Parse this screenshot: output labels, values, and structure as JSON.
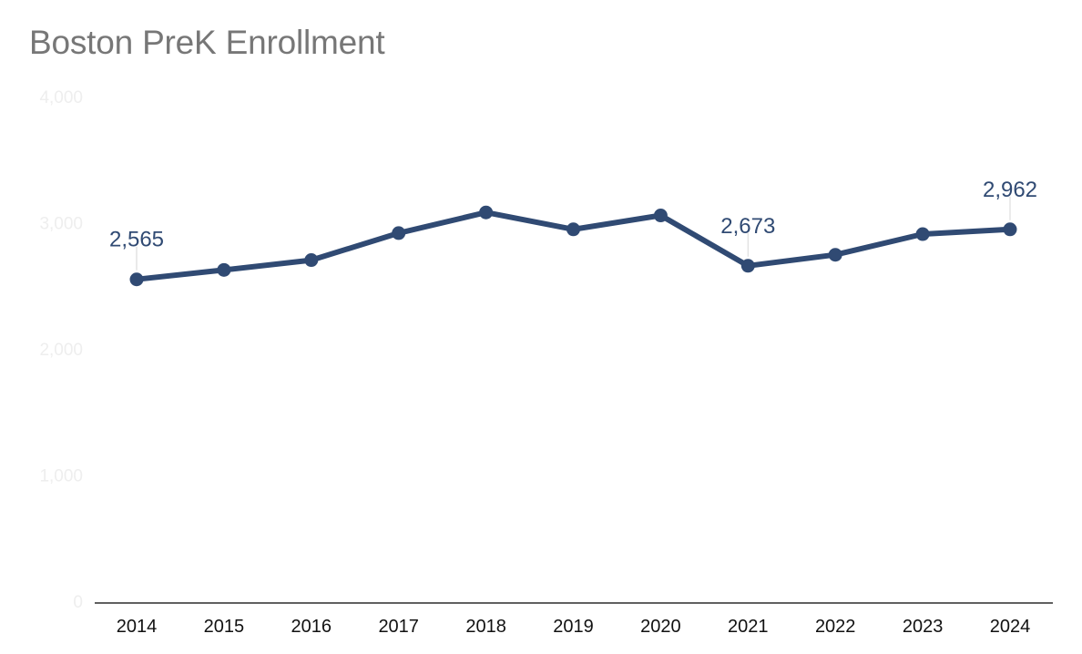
{
  "chart_data": {
    "type": "line",
    "title": "Boston PreK Enrollment",
    "xlabel": "",
    "ylabel": "",
    "categories": [
      "2014",
      "2015",
      "2016",
      "2017",
      "2018",
      "2019",
      "2020",
      "2021",
      "2022",
      "2023",
      "2024"
    ],
    "series": [
      {
        "values": [
          2565,
          2640,
          2718,
          2932,
          3096,
          2962,
          3072,
          2673,
          2760,
          2924,
          2962
        ]
      }
    ],
    "data_labels": [
      {
        "index": 0,
        "text": "2,565"
      },
      {
        "index": 7,
        "text": "2,673"
      },
      {
        "index": 10,
        "text": "2,962"
      }
    ],
    "ylim": [
      0,
      4000
    ],
    "yticks": [
      0,
      1000,
      2000,
      3000,
      4000
    ],
    "ytick_labels": [
      "0",
      "1,000",
      "2,000",
      "3,000",
      "4,000"
    ],
    "grid": false,
    "legend": "none",
    "colors": {
      "line": "#304a73",
      "title": "#777777",
      "y_tick": "#eeeeee",
      "x_tick": "#111111",
      "axis": "#000000",
      "leader": "#dddddd"
    }
  }
}
